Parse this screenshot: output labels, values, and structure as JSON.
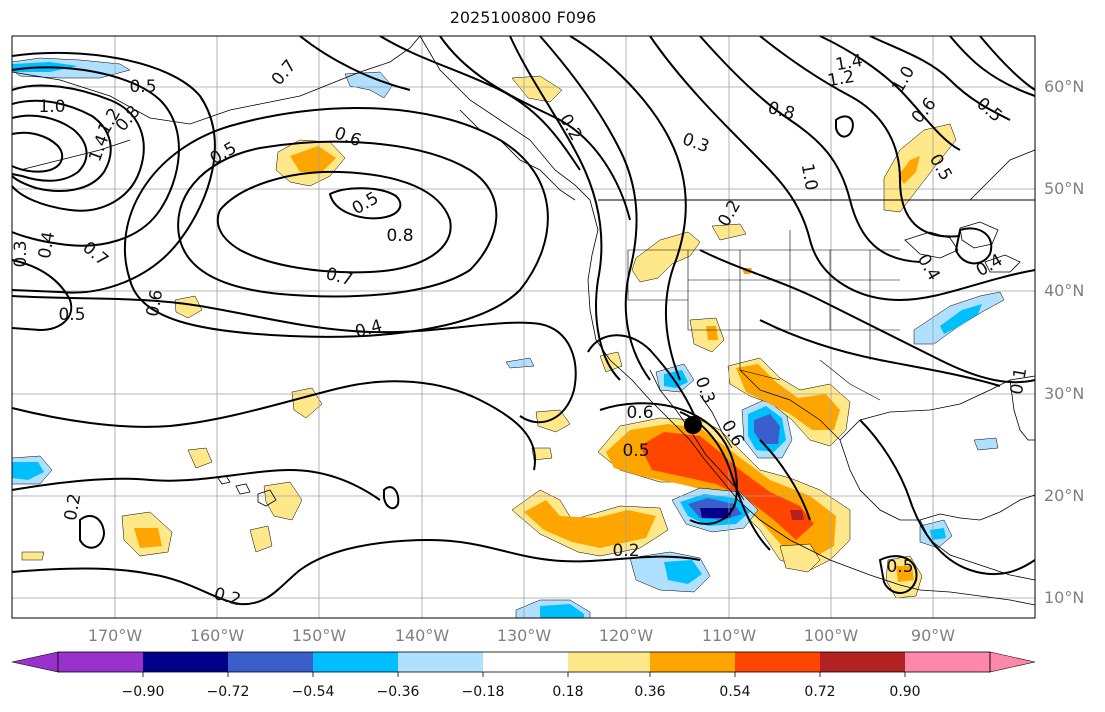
{
  "title": "2025100800 F096",
  "lat_labels": [
    "60°N",
    "50°N",
    "40°N",
    "30°N",
    "20°N",
    "10°N"
  ],
  "lon_labels": [
    "170°W",
    "160°W",
    "150°W",
    "140°W",
    "130°W",
    "120°W",
    "110°W",
    "100°W",
    "90°W"
  ],
  "colorbar": {
    "tick_labels": [
      "−0.90",
      "−0.72",
      "−0.54",
      "−0.36",
      "−0.18",
      "0.18",
      "0.36",
      "0.54",
      "0.72",
      "0.90"
    ],
    "colors": [
      "#9932cc",
      "#00008b",
      "#3a5fcd",
      "#00bfff",
      "#b0e0ff",
      "#ffffff",
      "#ffe88a",
      "#ffa500",
      "#ff4500",
      "#b22222",
      "#ff88aa"
    ]
  },
  "contour_labels": [
    "0.5",
    "1.0",
    "1.4",
    "1.2",
    "0.8",
    "0.7",
    "0.5",
    "0.6",
    "0.5",
    "0.8",
    "0.7",
    "0.3",
    "0.4",
    "0.7",
    "0.6",
    "0.5",
    "0.4",
    "0.2",
    "0.2",
    "0.2",
    "0.6",
    "0.5",
    "0.2",
    "0.3",
    "0.2",
    "0.3",
    "0.8",
    "1.2",
    "1.4",
    "1.0",
    "0.6",
    "0.5",
    "0.5",
    "1.0",
    "0.4",
    "0.1",
    "0.4",
    "0.6",
    "0.5"
  ],
  "colors": {
    "contour": "#000000",
    "grid": "#a0a0a0",
    "axis_label": "#808080"
  },
  "marker": {
    "name": "storm-center",
    "lat": 27,
    "lon": -113
  }
}
